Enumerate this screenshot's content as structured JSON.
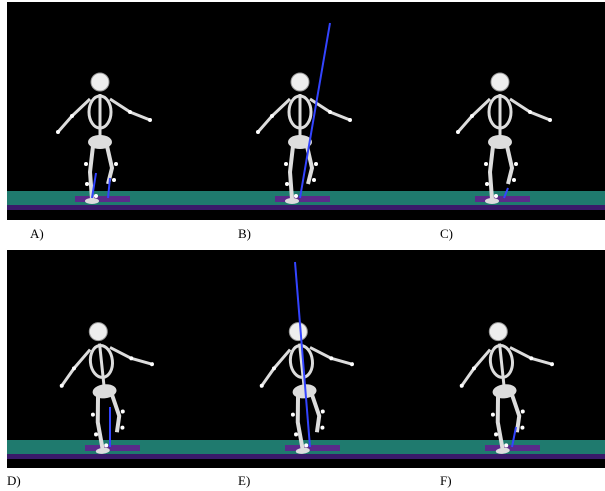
{
  "panels": [
    {
      "label": "A)"
    },
    {
      "label": "B)"
    },
    {
      "label": "C)"
    },
    {
      "label": "D)"
    },
    {
      "label": "E)"
    },
    {
      "label": "F)"
    }
  ]
}
